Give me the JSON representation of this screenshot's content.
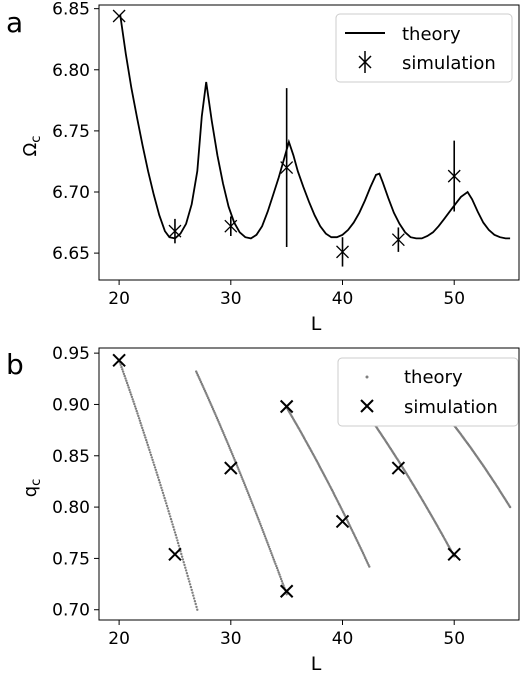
{
  "chart_data": [
    {
      "panel_label": "a",
      "type": "line",
      "xlabel": "L",
      "ylabel": "Ω",
      "ylabel_sub": "c",
      "xlim": [
        18.2,
        55.8
      ],
      "ylim": [
        6.628,
        6.853
      ],
      "xticks": [
        20,
        30,
        40,
        50
      ],
      "yticks": [
        6.65,
        6.7,
        6.75,
        6.8,
        6.85
      ],
      "ytick_labels": [
        "6.65",
        "6.70",
        "6.75",
        "6.80",
        "6.85"
      ],
      "legend": {
        "placement": "top-right"
      },
      "series": [
        {
          "name": "theory",
          "style": "line",
          "color": "#000000",
          "x": [
            20.1,
            20.6,
            21.1,
            21.6,
            22.1,
            22.6,
            23.1,
            23.6,
            24.1,
            24.5,
            25.0,
            25.5,
            26.0,
            26.5,
            27.0,
            27.4,
            27.8,
            28.3,
            28.8,
            29.3,
            29.8,
            30.3,
            30.8,
            31.3,
            31.8,
            32.3,
            32.8,
            33.3,
            33.8,
            34.3,
            34.8,
            35.2,
            35.6,
            36.0,
            36.5,
            37.0,
            37.5,
            38.0,
            38.5,
            39.0,
            39.5,
            40.0,
            40.5,
            41.0,
            41.5,
            42.0,
            42.5,
            43.0,
            43.3,
            43.6,
            44.1,
            44.6,
            45.1,
            45.6,
            46.1,
            46.6,
            47.1,
            47.6,
            48.1,
            48.6,
            49.1,
            49.6,
            50.1,
            50.6,
            51.2,
            51.6,
            52.1,
            52.6,
            53.1,
            53.6,
            54.1,
            54.6,
            55.0
          ],
          "y": [
            6.845,
            6.813,
            6.785,
            6.761,
            6.738,
            6.717,
            6.698,
            6.681,
            6.668,
            6.663,
            6.662,
            6.666,
            6.674,
            6.69,
            6.717,
            6.762,
            6.79,
            6.758,
            6.73,
            6.707,
            6.688,
            6.675,
            6.667,
            6.663,
            6.662,
            6.665,
            6.672,
            6.684,
            6.698,
            6.712,
            6.728,
            6.741,
            6.73,
            6.717,
            6.704,
            6.692,
            6.681,
            6.672,
            6.666,
            6.663,
            6.663,
            6.665,
            6.669,
            6.675,
            6.683,
            6.693,
            6.704,
            6.714,
            6.715,
            6.708,
            6.695,
            6.683,
            6.674,
            6.667,
            6.663,
            6.662,
            6.662,
            6.664,
            6.667,
            6.672,
            6.678,
            6.684,
            6.69,
            6.696,
            6.7,
            6.694,
            6.684,
            6.675,
            6.669,
            6.665,
            6.663,
            6.662,
            6.662
          ]
        },
        {
          "name": "simulation",
          "style": "x-marker-errorbar",
          "color": "#000000",
          "x": [
            20,
            25,
            30,
            35,
            40,
            45,
            50
          ],
          "y": [
            6.844,
            6.668,
            6.672,
            6.72,
            6.651,
            6.661,
            6.713
          ],
          "err": [
            0.0,
            0.01,
            0.008,
            0.065,
            0.012,
            0.01,
            0.029
          ]
        }
      ]
    },
    {
      "panel_label": "b",
      "type": "scatter",
      "xlabel": "L",
      "ylabel": "q",
      "ylabel_sub": "c",
      "xlim": [
        18.2,
        55.8
      ],
      "ylim": [
        0.69,
        0.955
      ],
      "xticks": [
        20,
        30,
        40,
        50
      ],
      "yticks": [
        0.7,
        0.75,
        0.8,
        0.85,
        0.9,
        0.95
      ],
      "ytick_labels": [
        "0.70",
        "0.75",
        "0.80",
        "0.85",
        "0.90",
        "0.95"
      ],
      "legend": {
        "placement": "top-right"
      },
      "series": [
        {
          "name": "theory",
          "style": "dots",
          "color": "#7f7f7f",
          "branches": [
            {
              "L_start": 20.0,
              "L_end": 27.0,
              "q_start": 0.943,
              "q_end": 0.7
            },
            {
              "L_start": 26.9,
              "L_end": 35.0,
              "q_start": 0.932,
              "q_end": 0.715
            },
            {
              "L_start": 35.0,
              "L_end": 42.4,
              "q_start": 0.897,
              "q_end": 0.742
            },
            {
              "L_start": 42.4,
              "L_end": 50.0,
              "q_start": 0.888,
              "q_end": 0.752
            },
            {
              "L_start": 49.6,
              "L_end": 55.0,
              "q_start": 0.885,
              "q_end": 0.8
            }
          ]
        },
        {
          "name": "simulation",
          "style": "x-marker",
          "color": "#000000",
          "x": [
            20,
            25,
            30,
            35,
            35,
            40,
            45,
            50
          ],
          "y": [
            0.943,
            0.754,
            0.838,
            0.898,
            0.718,
            0.786,
            0.838,
            0.754
          ]
        }
      ]
    }
  ]
}
